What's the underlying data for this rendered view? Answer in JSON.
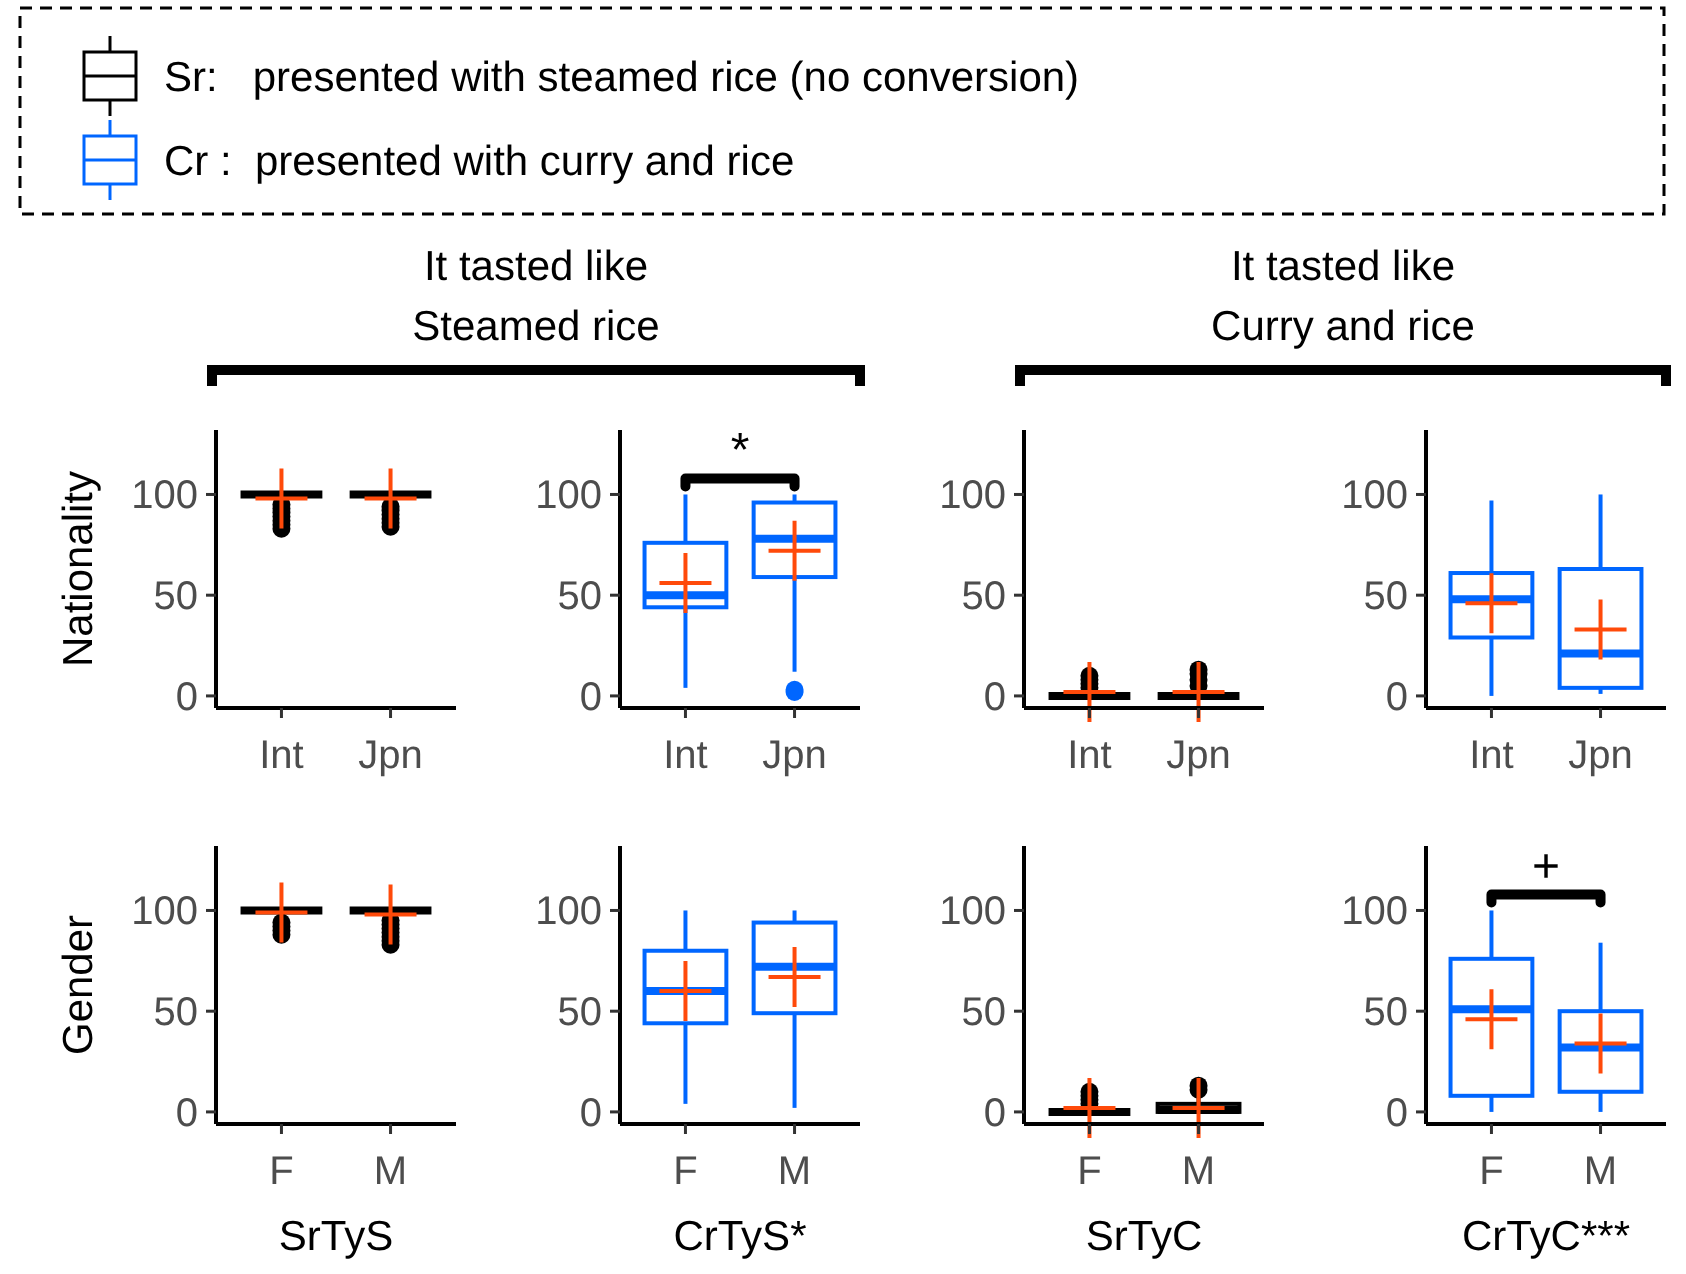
{
  "chart_data": [
    {
      "type": "box",
      "title": "It tasted like\nSteamed rice",
      "ylabel": "Nationality",
      "categories": [
        "Int",
        "Jpn"
      ],
      "ylim": [
        -6,
        132
      ],
      "yticks": [
        0,
        50,
        100
      ],
      "legend": "top",
      "series": [
        {
          "name": "Sr:   presented with steamed rice (no conversion)",
          "color": "#000000",
          "boxes": [
            {
              "low": 100,
              "q1": 100,
              "median": 100,
              "q3": 100,
              "high": 100,
              "mean": 98,
              "outliers": [
                83,
                85,
                87,
                89,
                91,
                93,
                95
              ]
            },
            {
              "low": 100,
              "q1": 100,
              "median": 100,
              "q3": 100,
              "high": 100,
              "mean": 98,
              "outliers": [
                84,
                86,
                88,
                90,
                92,
                94
              ]
            }
          ]
        }
      ]
    },
    {
      "type": "box",
      "categories": [
        "Int",
        "Jpn"
      ],
      "ylim": [
        -6,
        132
      ],
      "yticks": [
        0,
        50,
        100
      ],
      "legend": "top",
      "annotations": [
        "*"
      ],
      "series": [
        {
          "name": "Cr :  presented with curry and rice",
          "color": "#0066ff",
          "boxes": [
            {
              "low": 4,
              "q1": 44,
              "median": 50,
              "q3": 76,
              "high": 100,
              "mean": 56
            },
            {
              "low": 12,
              "q1": 59,
              "median": 78,
              "q3": 96,
              "high": 100,
              "mean": 72,
              "outliers": [
                3,
                2
              ]
            }
          ]
        }
      ]
    },
    {
      "type": "box",
      "title": "It tasted like\nCurry and rice",
      "categories": [
        "Int",
        "Jpn"
      ],
      "ylim": [
        -6,
        132
      ],
      "yticks": [
        0,
        50,
        100
      ],
      "series": [
        {
          "color": "#000000",
          "boxes": [
            {
              "low": 0,
              "q1": 0,
              "median": 0,
              "q3": 0,
              "high": 0,
              "mean": 2,
              "outliers": [
                4,
                6,
                8,
                10
              ]
            },
            {
              "low": 0,
              "q1": 0,
              "median": 0,
              "q3": 0,
              "high": 0,
              "mean": 2,
              "outliers": [
                5,
                8,
                11,
                13
              ]
            }
          ]
        }
      ]
    },
    {
      "type": "box",
      "categories": [
        "Int",
        "Jpn"
      ],
      "ylim": [
        -6,
        132
      ],
      "yticks": [
        0,
        50,
        100
      ],
      "series": [
        {
          "color": "#0066ff",
          "boxes": [
            {
              "low": 0,
              "q1": 29,
              "median": 48,
              "q3": 61,
              "high": 97,
              "mean": 46
            },
            {
              "low": 1,
              "q1": 4,
              "median": 21,
              "q3": 63,
              "high": 100,
              "mean": 33
            }
          ]
        }
      ]
    },
    {
      "type": "box",
      "ylabel": "Gender",
      "xlabel": "SrTyS",
      "categories": [
        "F",
        "M"
      ],
      "ylim": [
        -6,
        132
      ],
      "yticks": [
        0,
        50,
        100
      ],
      "series": [
        {
          "color": "#000000",
          "boxes": [
            {
              "low": 100,
              "q1": 100,
              "median": 100,
              "q3": 100,
              "high": 100,
              "mean": 99,
              "outliers": [
                88,
                90,
                92,
                94
              ]
            },
            {
              "low": 100,
              "q1": 100,
              "median": 100,
              "q3": 100,
              "high": 100,
              "mean": 98,
              "outliers": [
                83,
                85,
                87,
                89,
                91,
                93,
                95
              ]
            }
          ]
        }
      ]
    },
    {
      "type": "box",
      "xlabel": "CrTyS*",
      "categories": [
        "F",
        "M"
      ],
      "ylim": [
        -6,
        132
      ],
      "yticks": [
        0,
        50,
        100
      ],
      "series": [
        {
          "color": "#0066ff",
          "boxes": [
            {
              "low": 4,
              "q1": 44,
              "median": 60,
              "q3": 80,
              "high": 100,
              "mean": 60
            },
            {
              "low": 2,
              "q1": 49,
              "median": 72,
              "q3": 94,
              "high": 100,
              "mean": 67
            }
          ]
        }
      ]
    },
    {
      "type": "box",
      "xlabel": "SrTyC",
      "categories": [
        "F",
        "M"
      ],
      "ylim": [
        -6,
        132
      ],
      "yticks": [
        0,
        50,
        100
      ],
      "series": [
        {
          "color": "#000000",
          "boxes": [
            {
              "low": 0,
              "q1": 0,
              "median": 0,
              "q3": 0,
              "high": 0,
              "mean": 2,
              "outliers": [
                4,
                6,
                8,
                10
              ]
            },
            {
              "low": 0,
              "q1": 0,
              "median": 1,
              "q3": 4,
              "high": 9,
              "mean": 2,
              "outliers": [
                11,
                13
              ]
            }
          ]
        }
      ]
    },
    {
      "type": "box",
      "xlabel": "CrTyC***",
      "categories": [
        "F",
        "M"
      ],
      "ylim": [
        -6,
        132
      ],
      "yticks": [
        0,
        50,
        100
      ],
      "annotations": [
        "+"
      ],
      "series": [
        {
          "color": "#0066ff",
          "boxes": [
            {
              "low": 0,
              "q1": 8,
              "median": 51,
              "q3": 76,
              "high": 100,
              "mean": 46
            },
            {
              "low": 0,
              "q1": 10,
              "median": 32,
              "q3": 50,
              "high": 84,
              "mean": 34
            }
          ]
        }
      ]
    }
  ]
}
